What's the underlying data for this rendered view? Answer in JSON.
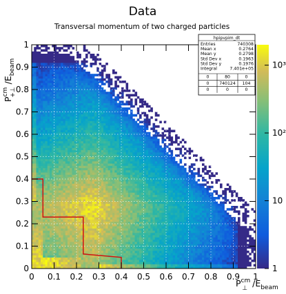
{
  "chart_data": {
    "type": "heatmap",
    "title": "Data",
    "subtitle": "Transversal momentum of two charged particles",
    "xlabel": {
      "main": "P",
      "sub": "⊥",
      "sup": "cm",
      "tail": "/E",
      "tailsub": "beam"
    },
    "ylabel": {
      "main": "P",
      "sub": "+⊥",
      "sup": "cm",
      "tail": "/E",
      "tailsub": "beam"
    },
    "xlim": [
      0,
      1
    ],
    "ylim": [
      0,
      1
    ],
    "xticks": [
      "0",
      "0.1",
      "0.2",
      "0.3",
      "0.4",
      "0.5",
      "0.6",
      "0.7",
      "0.8",
      "0.9",
      "1"
    ],
    "yticks": [
      "0",
      "0.1",
      "0.2",
      "0.3",
      "0.4",
      "0.5",
      "0.6",
      "0.7",
      "0.8",
      "0.9",
      "1"
    ],
    "colorbar": {
      "scale": "log",
      "range": [
        1,
        2000
      ],
      "ticks": [
        {
          "v": 1,
          "label": "1"
        },
        {
          "v": 10,
          "label": "10"
        },
        {
          "v": 100,
          "label": "10²"
        },
        {
          "v": 1000,
          "label": "10³"
        }
      ]
    },
    "grid": true,
    "cut_boundary": [
      [
        0,
        0.4
      ],
      [
        0.05,
        0.4
      ],
      [
        0.05,
        0.23
      ],
      [
        0.23,
        0.23
      ],
      [
        0.23,
        0.065
      ],
      [
        0.4,
        0.05
      ],
      [
        0.4,
        0
      ]
    ],
    "stats_box": {
      "title": "hpipvpim_dt",
      "rows": [
        {
          "label": "Entries",
          "value": "740308"
        },
        {
          "label": "Mean x",
          "value": "0.2764"
        },
        {
          "label": "Mean y",
          "value": "0.2798"
        },
        {
          "label": "Std Dev x",
          "value": "0.1963"
        },
        {
          "label": "Std Dev y",
          "value": "0.1976"
        },
        {
          "label": "Integral",
          "value": "7.401e+05"
        }
      ],
      "grid": [
        [
          "0",
          "80",
          "0"
        ],
        [
          "0",
          "740124",
          "104"
        ],
        [
          "0",
          "0",
          "0"
        ]
      ]
    }
  }
}
